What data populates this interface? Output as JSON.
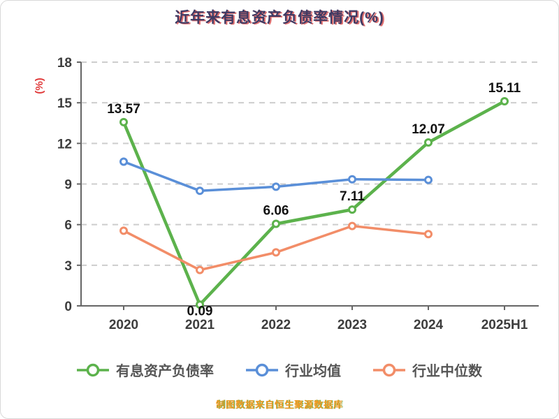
{
  "page": {
    "title": "近年来有息资产负债率情况(%)",
    "footer": "制图数据来自恒生聚源数据库"
  },
  "chart_data": {
    "type": "line",
    "title": "近年来有息资产负债率情况(%)",
    "categories": [
      "2020",
      "2021",
      "2022",
      "2023",
      "2024",
      "2025H1"
    ],
    "series": [
      {
        "name": "有息资产负债率",
        "color": "#5cb24c",
        "values": [
          13.57,
          0.09,
          6.06,
          7.11,
          12.07,
          15.11
        ],
        "labels": [
          "13.57",
          "0.09",
          "6.06",
          "7.11",
          "12.07",
          "15.11"
        ]
      },
      {
        "name": "行业均值",
        "color": "#5a8fd8",
        "values": [
          10.65,
          8.5,
          8.8,
          9.35,
          9.3,
          null
        ]
      },
      {
        "name": "行业中位数",
        "color": "#f28d68",
        "values": [
          5.55,
          2.65,
          3.95,
          5.9,
          5.3,
          null
        ]
      }
    ],
    "ylabel": "(%)",
    "ylabel_color": "#e03a3a",
    "yticks": [
      0,
      3,
      6,
      9,
      12,
      15,
      18
    ],
    "ylim": [
      0,
      18
    ],
    "grid": true,
    "grid_color": "#cdcdcd",
    "axis_color": "#666666",
    "legend_position": "bottom"
  }
}
